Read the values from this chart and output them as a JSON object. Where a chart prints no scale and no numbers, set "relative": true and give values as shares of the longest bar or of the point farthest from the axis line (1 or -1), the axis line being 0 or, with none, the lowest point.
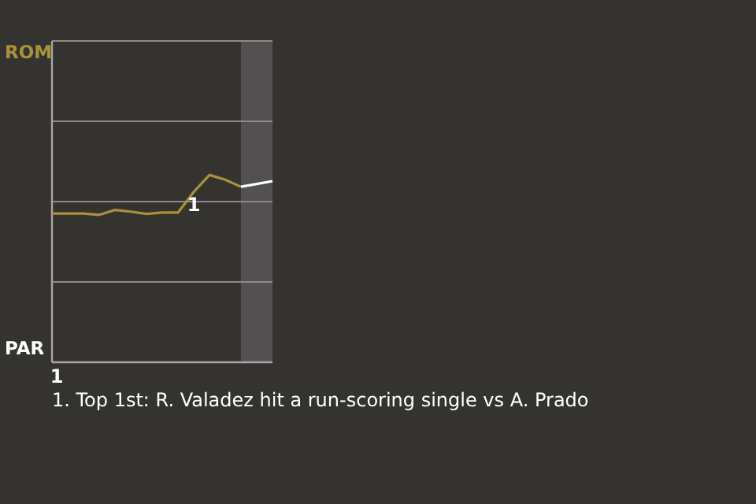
{
  "chart_data": {
    "type": "line",
    "relative": true,
    "categories": [
      null,
      null,
      null,
      null,
      null,
      null,
      null,
      null,
      null,
      null,
      null,
      null,
      null,
      null,
      null
    ],
    "marker": "none",
    "ref_lines": [
      {
        "axis": "y",
        "value": 0.429,
        "color": "#8c8a86"
      },
      {
        "axis": "y",
        "value": 0.858,
        "color": "#8c8a86"
      }
    ],
    "line_style": "solid",
    "series": [
      {
        "color": "#a8923c",
        "values": [
          0.794,
          0.794,
          0.794,
          0.787,
          0.813,
          0.804,
          0.792,
          0.799,
          0.799,
          0.909,
          1,
          0.974,
          0.937,
          null,
          null
        ]
      },
      {
        "color": "#ffffff",
        "values": [
          null,
          null,
          null,
          null,
          null,
          null,
          null,
          null,
          null,
          null,
          null,
          null,
          0.937,
          0.952,
          0.967
        ]
      }
    ],
    "annotations": [
      "ROM",
      "PAR",
      "1",
      {
        "text": "1",
        "y": 0.84
      },
      "1. Top 1st: R. Valadez hit a run-scoring single vs A. Prado"
    ]
  }
}
